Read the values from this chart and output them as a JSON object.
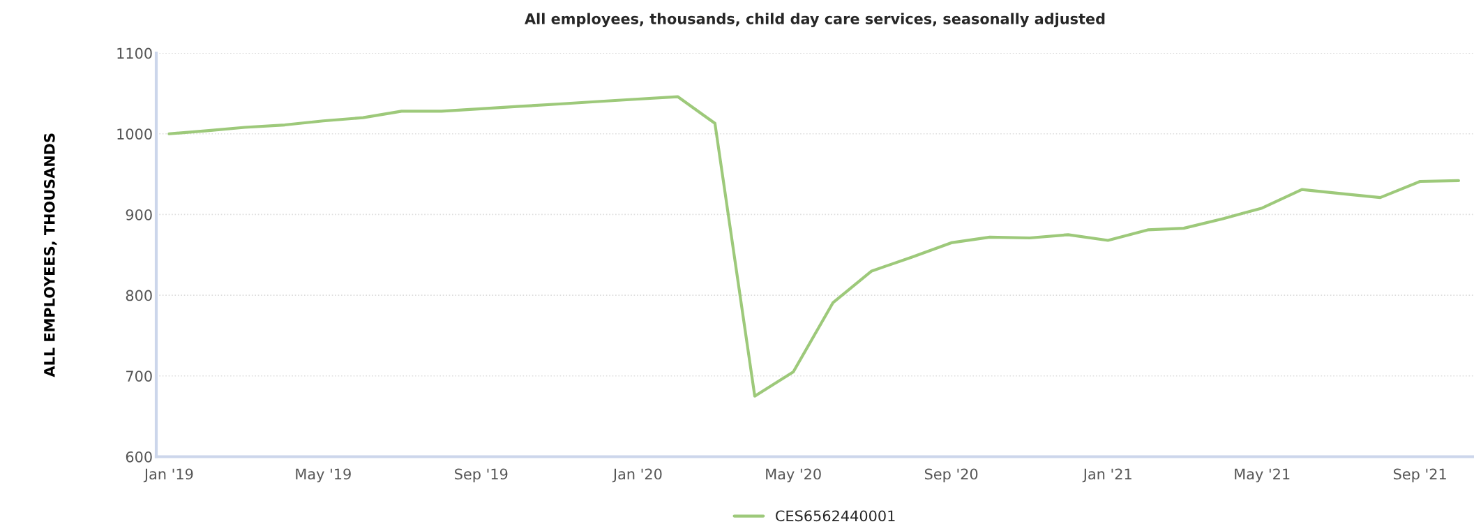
{
  "chart_data": {
    "type": "line",
    "title": "All employees, thousands, child day care services, seasonally adjusted",
    "ylabel": "ALL EMPLOYEES, THOUSANDS",
    "x": [
      "2019-01",
      "2019-02",
      "2019-03",
      "2019-04",
      "2019-05",
      "2019-06",
      "2019-07",
      "2019-08",
      "2019-09",
      "2019-10",
      "2019-11",
      "2019-12",
      "2020-01",
      "2020-02",
      "2020-03",
      "2020-04",
      "2020-05",
      "2020-06",
      "2020-07",
      "2020-08",
      "2020-09",
      "2020-10",
      "2020-11",
      "2020-12",
      "2021-01",
      "2021-02",
      "2021-03",
      "2021-04",
      "2021-05",
      "2021-06",
      "2021-07",
      "2021-08",
      "2021-09",
      "2021-10"
    ],
    "series": [
      {
        "name": "CES6562440001",
        "color": "#9dc97a",
        "values": [
          1000,
          1004,
          1008,
          1011,
          1016,
          1020,
          1028,
          1028,
          1031,
          1034,
          1037,
          1040,
          1043,
          1046,
          1013,
          675,
          705,
          791,
          830,
          847,
          865,
          872,
          871,
          875,
          868,
          881,
          883,
          895,
          908,
          931,
          926,
          921,
          941,
          942
        ]
      }
    ],
    "xlim": [
      "2018-12-22",
      "2021-10-13"
    ],
    "xticks": [
      {
        "value": "2019-01",
        "label": "Jan '19"
      },
      {
        "value": "2019-05",
        "label": "May '19"
      },
      {
        "value": "2019-09",
        "label": "Sep '19"
      },
      {
        "value": "2020-01",
        "label": "Jan '20"
      },
      {
        "value": "2020-05",
        "label": "May '20"
      },
      {
        "value": "2020-09",
        "label": "Sep '20"
      },
      {
        "value": "2021-01",
        "label": "Jan '21"
      },
      {
        "value": "2021-05",
        "label": "May '21"
      },
      {
        "value": "2021-09",
        "label": "Sep '21"
      }
    ],
    "ylim": [
      600,
      1100
    ],
    "yticks": [
      600,
      700,
      800,
      900,
      1000,
      1100
    ],
    "grid": "y",
    "legend": "bottom",
    "marker": "none",
    "line_style": "solid"
  }
}
